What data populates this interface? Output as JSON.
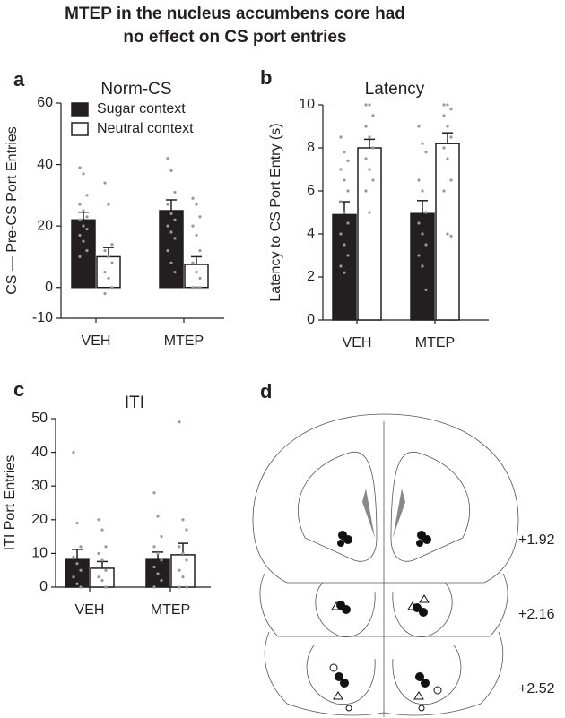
{
  "title": [
    "MTEP in the nucleus accumbens core had",
    "no effect on CS port entries"
  ],
  "chart_data": [
    {
      "type": "bar",
      "panel": "a",
      "title": "Norm-CS",
      "ylabel": "CS — Pre-CS Port Entries",
      "categories": [
        "VEH",
        "MTEP"
      ],
      "ylim": [
        -10,
        60
      ],
      "yticks": [
        -10,
        0,
        20,
        40,
        60
      ],
      "legend": "upper left",
      "series": [
        {
          "name": "Sugar context",
          "color": "#231f20",
          "values": [
            22,
            25
          ],
          "errors": [
            2.5,
            3.5
          ],
          "points": [
            [
              39,
              37,
              30,
              27,
              25,
              23,
              22,
              20,
              19,
              17,
              15,
              12,
              10
            ],
            [
              42,
              38,
              31,
              27,
              24,
              22,
              20,
              18,
              16,
              12,
              8,
              5
            ]
          ]
        },
        {
          "name": "Neutral context",
          "color": "#ffffff",
          "values": [
            10,
            7.5
          ],
          "errors": [
            3,
            2.5
          ],
          "points": [
            [
              34,
              27,
              14,
              12,
              10,
              8,
              5,
              3,
              0,
              -2
            ],
            [
              29,
              27,
              23,
              20,
              17,
              12,
              8,
              5,
              3,
              0,
              0,
              0
            ]
          ]
        }
      ]
    },
    {
      "type": "bar",
      "panel": "b",
      "title": "Latency",
      "ylabel": "Latency to CS Port Entry (s)",
      "categories": [
        "VEH",
        "MTEP"
      ],
      "ylim": [
        0,
        10
      ],
      "yticks": [
        0,
        2,
        4,
        6,
        8,
        10
      ],
      "series": [
        {
          "color": "#231f20",
          "values": [
            4.9,
            4.95
          ],
          "errors": [
            0.6,
            0.6
          ],
          "points": [
            [
              8.5,
              7.8,
              7.4,
              7,
              6.5,
              6,
              5.5,
              5,
              4.5,
              4,
              3.5,
              3,
              2.5,
              2.2
            ],
            [
              9,
              8.2,
              7.8,
              6.5,
              6,
              5,
              4.5,
              4,
              3.5,
              3,
              2.5,
              1.4
            ]
          ]
        },
        {
          "color": "#ffffff",
          "values": [
            8,
            8.2
          ],
          "errors": [
            0.4,
            0.5
          ],
          "points": [
            [
              10,
              10,
              9.5,
              9,
              8.5,
              8,
              7.5,
              7,
              6.5,
              6,
              5
            ],
            [
              10,
              10,
              9.8,
              9.5,
              9,
              8.5,
              8,
              7.5,
              6.5,
              6,
              4,
              3.9
            ]
          ]
        }
      ]
    },
    {
      "type": "bar",
      "panel": "c",
      "title": "ITI",
      "ylabel": "ITI Port Entries",
      "categories": [
        "VEH",
        "MTEP"
      ],
      "ylim": [
        0,
        50
      ],
      "yticks": [
        0,
        10,
        20,
        30,
        40,
        50
      ],
      "series": [
        {
          "color": "#231f20",
          "values": [
            8.2,
            8.2
          ],
          "errors": [
            3,
            2.2
          ],
          "points": [
            [
              40,
              19,
              12,
              9,
              7,
              5,
              3,
              1,
              0
            ],
            [
              28,
              21,
              15,
              12,
              10,
              8,
              6,
              4,
              2,
              0
            ]
          ]
        },
        {
          "color": "#ffffff",
          "values": [
            5.6,
            9.6
          ],
          "errors": [
            2,
            3.4
          ],
          "points": [
            [
              20,
              17,
              12,
              10,
              8,
              5,
              3,
              2,
              0
            ],
            [
              49,
              20,
              17,
              12,
              10,
              8,
              5,
              3,
              0,
              0
            ]
          ]
        }
      ]
    }
  ],
  "diagram": {
    "panel": "d",
    "labels": [
      "+1.92",
      "+2.16",
      "+2.52"
    ]
  }
}
